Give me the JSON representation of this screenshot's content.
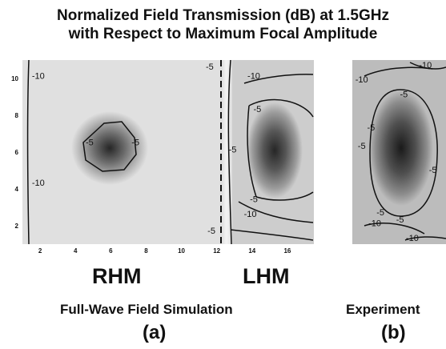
{
  "header": {
    "title_line1": "Normalized Field Transmission (dB) at 1.5GHz",
    "title_line2": "with Respect to Maximum Focal Amplitude"
  },
  "labels": {
    "rhm": "RHM",
    "lhm": "LHM",
    "simulation": "Full-Wave Field Simulation",
    "experiment": "Experiment",
    "tag_a": "(a)",
    "tag_b": "(b)"
  },
  "chart_data": [
    {
      "type": "heatmap",
      "subtitle": "Full-Wave Field Simulation",
      "xlim": [
        1,
        17.5
      ],
      "ylim": [
        1,
        11
      ],
      "xticks": [
        2,
        4,
        6,
        8,
        10,
        12,
        14,
        16
      ],
      "yticks": [
        2,
        4,
        6,
        8,
        10
      ],
      "colormap": [
        "#1e1e1e",
        "#ffffff"
      ],
      "regions": [
        {
          "name": "RHM",
          "x_range": [
            1,
            12
          ]
        },
        {
          "name": "LHM",
          "x_range": [
            12,
            17.5
          ]
        }
      ],
      "interface_x": 12,
      "hotspots": [
        {
          "region": "RHM",
          "x": 6,
          "y": 6,
          "peak_db": 0
        },
        {
          "region": "LHM",
          "x": 15,
          "y": 5.8,
          "peak_db": 0
        }
      ],
      "contour_labels": [
        {
          "text": "-10",
          "x": 1.9,
          "y": 10.1
        },
        {
          "text": "-10",
          "x": 1.9,
          "y": 4.3
        },
        {
          "text": "-5",
          "x": 4.8,
          "y": 6.5
        },
        {
          "text": "-5",
          "x": 7.4,
          "y": 6.5
        },
        {
          "text": "-5",
          "x": 11.6,
          "y": 10.6
        },
        {
          "text": "-10",
          "x": 14.1,
          "y": 10.1
        },
        {
          "text": "-5",
          "x": 14.3,
          "y": 8.3
        },
        {
          "text": "-5",
          "x": 12.9,
          "y": 6.1
        },
        {
          "text": "-5",
          "x": 14.1,
          "y": 3.4
        },
        {
          "text": "-10",
          "x": 13.9,
          "y": 2.6
        },
        {
          "text": "-5",
          "x": 11.7,
          "y": 1.7
        }
      ]
    },
    {
      "type": "heatmap",
      "subtitle": "Experiment",
      "colormap": [
        "#1e1e1e",
        "#ffffff"
      ],
      "hotspots": [
        {
          "x": 0.5,
          "y": 0.48,
          "peak_db": 0
        }
      ],
      "contour_labels": [
        {
          "text": "-10",
          "rx": 0.1,
          "ry": 0.11
        },
        {
          "text": "-10",
          "rx": 0.78,
          "ry": 0.03
        },
        {
          "text": "-5",
          "rx": 0.55,
          "ry": 0.19
        },
        {
          "text": "-5",
          "rx": 0.2,
          "ry": 0.37
        },
        {
          "text": "-5",
          "rx": 0.1,
          "ry": 0.47
        },
        {
          "text": "-5",
          "rx": 0.86,
          "ry": 0.6
        },
        {
          "text": "-5",
          "rx": 0.3,
          "ry": 0.83
        },
        {
          "text": "-5",
          "rx": 0.51,
          "ry": 0.87
        },
        {
          "text": "-10",
          "rx": 0.24,
          "ry": 0.89
        },
        {
          "text": "-10",
          "rx": 0.64,
          "ry": 0.97
        }
      ]
    }
  ]
}
